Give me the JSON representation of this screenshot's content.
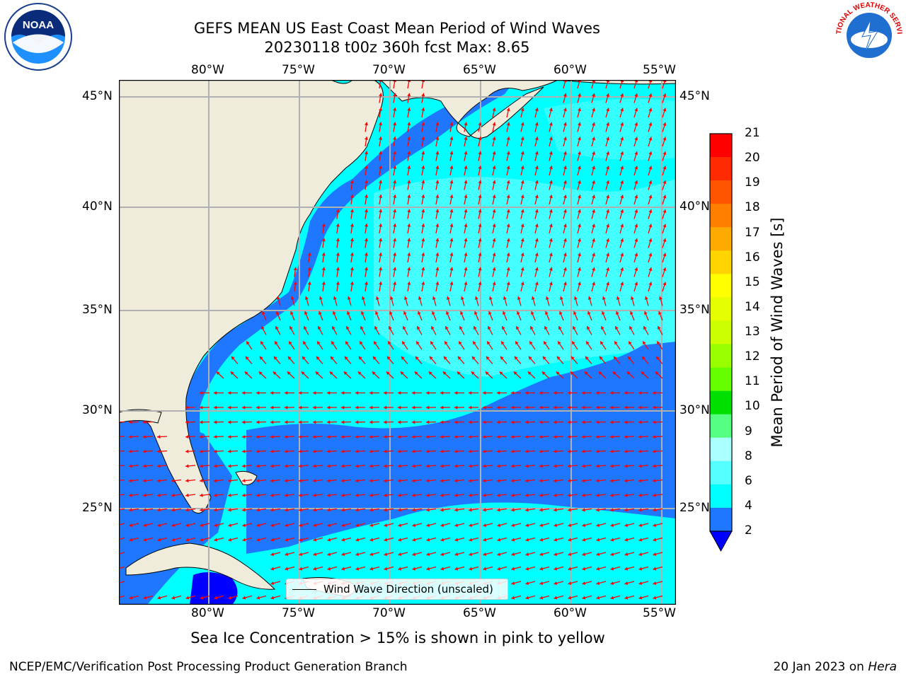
{
  "header": {
    "title": "GEFS MEAN US East Coast Mean Period of Wind Waves",
    "subtitle": "20230118 t00z 360h fcst   Max: 8.65"
  },
  "logos": {
    "noaa_text": "NOAA",
    "nws_text": "NATIONAL WEATHER SERVICE"
  },
  "map": {
    "lon_ticks": [
      "80°W",
      "75°W",
      "70°W",
      "65°W",
      "60°W",
      "55°W"
    ],
    "lat_ticks": [
      "45°N",
      "40°N",
      "35°N",
      "30°N",
      "25°N"
    ],
    "legend_label": "Wind Wave Direction (unscaled)",
    "colors": {
      "land": "#efecdc",
      "ocean_low": "#1f77ff",
      "ocean_mid": "#00ffff",
      "ocean_high": "#55ffff",
      "arrow": "#ff0000",
      "grid": "#b0b0b0"
    }
  },
  "colorbar": {
    "label": "Mean Period of Wind Waves [s]",
    "ticks": [
      "21",
      "20",
      "19",
      "18",
      "17",
      "16",
      "15",
      "14",
      "13",
      "12",
      "11",
      "10",
      "9",
      "8",
      "6",
      "4",
      "2"
    ],
    "colors": [
      "#ff0000",
      "#ff2a00",
      "#ff5500",
      "#ff8000",
      "#ffaa00",
      "#ffd400",
      "#ffff00",
      "#e6ff00",
      "#ccff00",
      "#99ff00",
      "#66ff00",
      "#00e000",
      "#55ff7f",
      "#aaffff",
      "#55ffff",
      "#00ffff",
      "#1f77ff",
      "#0000ff"
    ]
  },
  "footer": {
    "note": "Sea Ice Concentration > 15% is shown in pink to yellow",
    "left": "NCEP/EMC/Verification Post Processing Product Generation Branch",
    "right_date": "20 Jan 2023 on",
    "right_host": "Hera"
  }
}
